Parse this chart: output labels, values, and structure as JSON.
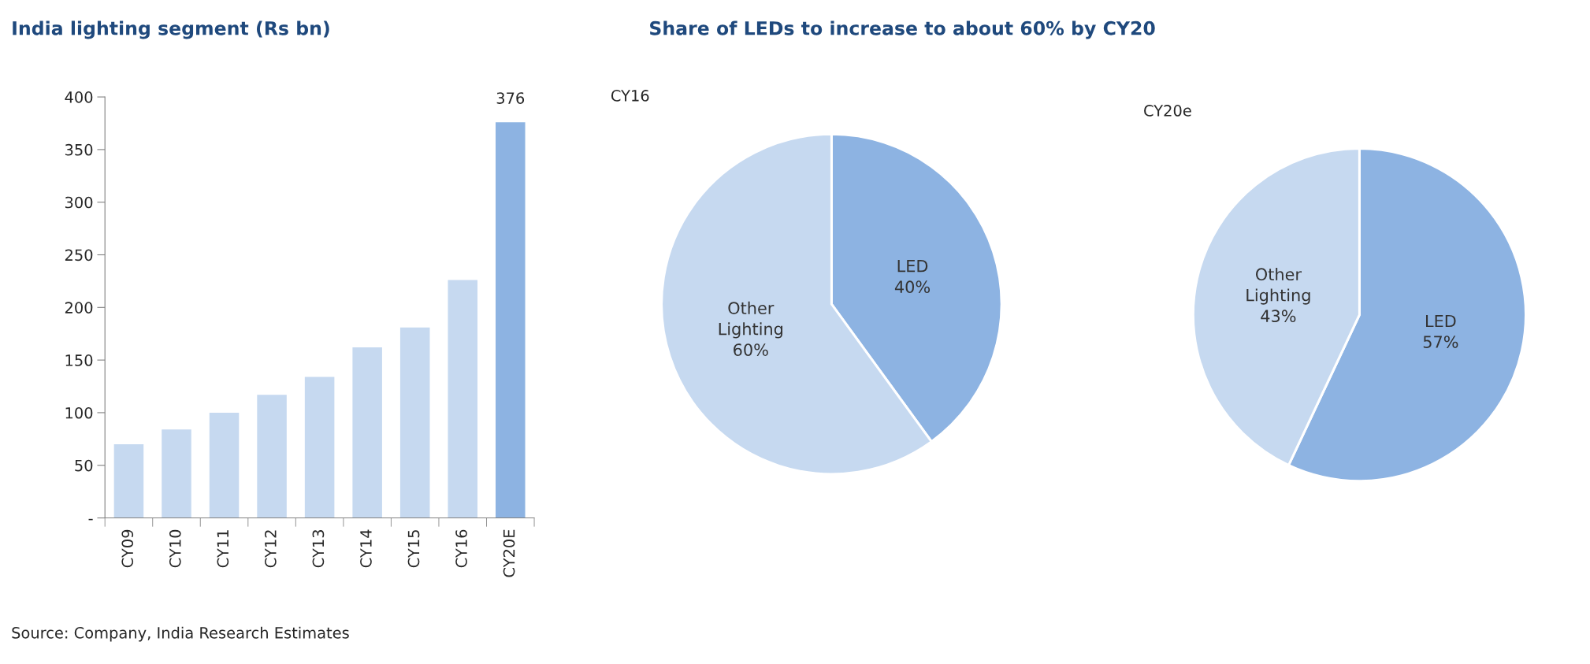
{
  "chart_data": [
    {
      "type": "bar",
      "title": "India lighting segment (Rs bn)",
      "categories": [
        "CY09",
        "CY10",
        "CY11",
        "CY12",
        "CY13",
        "CY14",
        "CY15",
        "CY16",
        "CY20E"
      ],
      "values": [
        70,
        84,
        100,
        117,
        134,
        162,
        181,
        226,
        376
      ],
      "colors": [
        "#c6d9f0",
        "#c6d9f0",
        "#c6d9f0",
        "#c6d9f0",
        "#c6d9f0",
        "#c6d9f0",
        "#c6d9f0",
        "#c6d9f0",
        "#8db3e2"
      ],
      "value_labels": [
        null,
        null,
        null,
        null,
        null,
        null,
        null,
        null,
        "376"
      ],
      "ylim": [
        0,
        400
      ],
      "yticks": [
        {
          "value": 0,
          "label": "-"
        },
        50,
        100,
        150,
        200,
        250,
        300,
        350,
        400
      ],
      "annotations": [
        "Source: Company, India Research Estimates"
      ]
    },
    {
      "type": "pie",
      "title": "Share of LEDs to increase to about 60% by CY20",
      "subtitle": "CY16",
      "categories": [
        "LED",
        "Other Lighting"
      ],
      "values": [
        40,
        60
      ],
      "colors": [
        "#8db3e2",
        "#c6d9f0"
      ],
      "value_labels": [
        "40%",
        "60%"
      ]
    },
    {
      "type": "pie",
      "subtitle": "CY20e",
      "categories": [
        "LED",
        "Other Lighting"
      ],
      "values": [
        57,
        43
      ],
      "colors": [
        "#8db3e2",
        "#c6d9f0"
      ],
      "value_labels": [
        "57%",
        "43%"
      ]
    }
  ]
}
